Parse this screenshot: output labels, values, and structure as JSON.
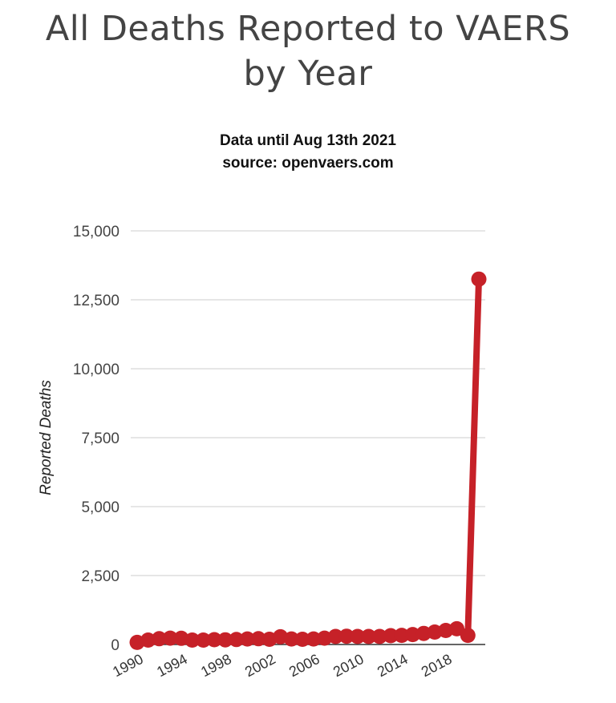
{
  "chart_data": {
    "type": "line",
    "title_lines": [
      "All Deaths Reported to VAERS",
      "by Year"
    ],
    "subtitle_lines": [
      "Data until Aug 13th 2021",
      "source: openvaers.com"
    ],
    "xlabel": "",
    "ylabel": "Reported Deaths",
    "ylim": [
      0,
      15000
    ],
    "yticks": [
      0,
      2500,
      5000,
      7500,
      10000,
      12500,
      15000
    ],
    "ytick_labels": [
      "0",
      "2,500",
      "5,000",
      "7,500",
      "10,000",
      "12,500",
      "15,000"
    ],
    "xticks": [
      1990,
      1994,
      1998,
      2002,
      2006,
      2010,
      2014,
      2018
    ],
    "xtick_labels": [
      "1990",
      "1994",
      "1998",
      "2002",
      "2006",
      "2010",
      "2014",
      "2018"
    ],
    "grid": true,
    "legend": "none",
    "color": "#c62128",
    "series": [
      {
        "x": [
          1990,
          1991,
          1992,
          1993,
          1994,
          1995,
          1996,
          1997,
          1998,
          1999,
          2000,
          2001,
          2002,
          2003,
          2004,
          2005,
          2006,
          2007,
          2008,
          2009,
          2010,
          2011,
          2012,
          2013,
          2014,
          2015,
          2016,
          2017,
          2018,
          2019,
          2020,
          2021
        ],
        "values": [
          75,
          160,
          210,
          230,
          225,
          160,
          160,
          175,
          170,
          180,
          200,
          210,
          190,
          280,
          200,
          190,
          200,
          230,
          290,
          300,
          290,
          290,
          290,
          320,
          330,
          360,
          400,
          450,
          510,
          570,
          330,
          13250
        ]
      }
    ]
  }
}
